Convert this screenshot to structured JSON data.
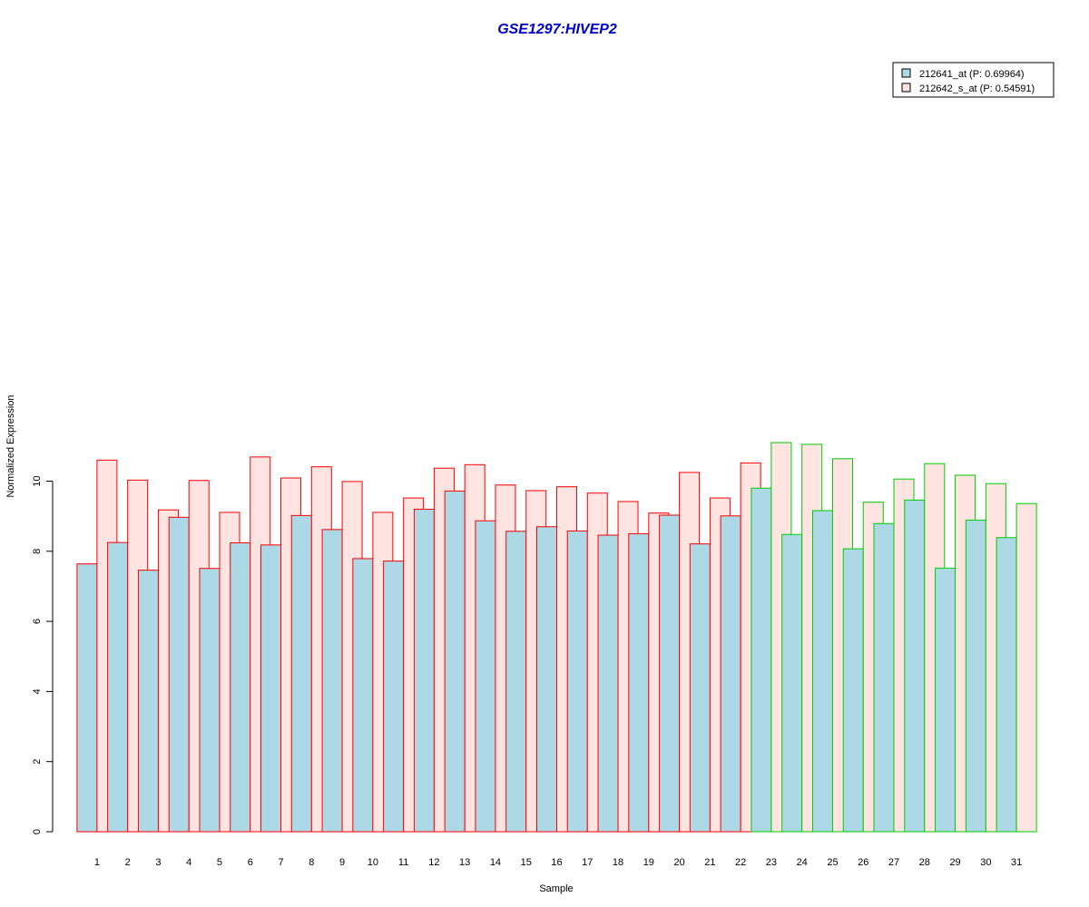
{
  "chart_data": {
    "type": "bar",
    "title": "GSE1297:HIVEP2",
    "xlabel": "Sample",
    "ylabel": "Normalized Expression",
    "ylim": [
      0,
      11.2
    ],
    "yticks": [
      0,
      2,
      4,
      6,
      8,
      10
    ],
    "categories": [
      "1",
      "2",
      "3",
      "4",
      "5",
      "6",
      "7",
      "8",
      "9",
      "10",
      "11",
      "12",
      "13",
      "14",
      "15",
      "16",
      "17",
      "18",
      "19",
      "20",
      "21",
      "22",
      "23",
      "24",
      "25",
      "26",
      "27",
      "28",
      "29",
      "30",
      "31"
    ],
    "series": [
      {
        "name": "212641_at (P: 0.69964)",
        "fill": "#add8e6",
        "values": [
          7.64,
          8.25,
          7.46,
          8.97,
          7.51,
          8.24,
          8.18,
          9.02,
          8.62,
          7.79,
          7.72,
          9.2,
          9.72,
          8.87,
          8.57,
          8.7,
          8.58,
          8.46,
          8.5,
          9.03,
          8.21,
          9.01,
          9.8,
          8.48,
          9.16,
          8.07,
          8.79,
          9.46,
          7.52,
          8.89,
          8.39
        ]
      },
      {
        "name": "212642_s_at (P: 0.54591)",
        "fill": "#ffe4e1",
        "values": [
          10.6,
          10.03,
          9.18,
          10.02,
          9.11,
          10.69,
          10.09,
          10.41,
          9.99,
          9.11,
          9.52,
          10.37,
          10.47,
          9.89,
          9.73,
          9.84,
          9.66,
          9.42,
          9.09,
          10.25,
          9.52,
          10.52,
          11.1,
          11.05,
          10.64,
          9.4,
          10.06,
          10.5,
          10.17,
          9.93,
          9.36
        ]
      }
    ],
    "group_outline_colors": [
      "#ff0000",
      "#00cc00"
    ],
    "group_sizes": [
      22,
      9
    ],
    "legend": {
      "position": "top-right"
    },
    "grid": false
  }
}
